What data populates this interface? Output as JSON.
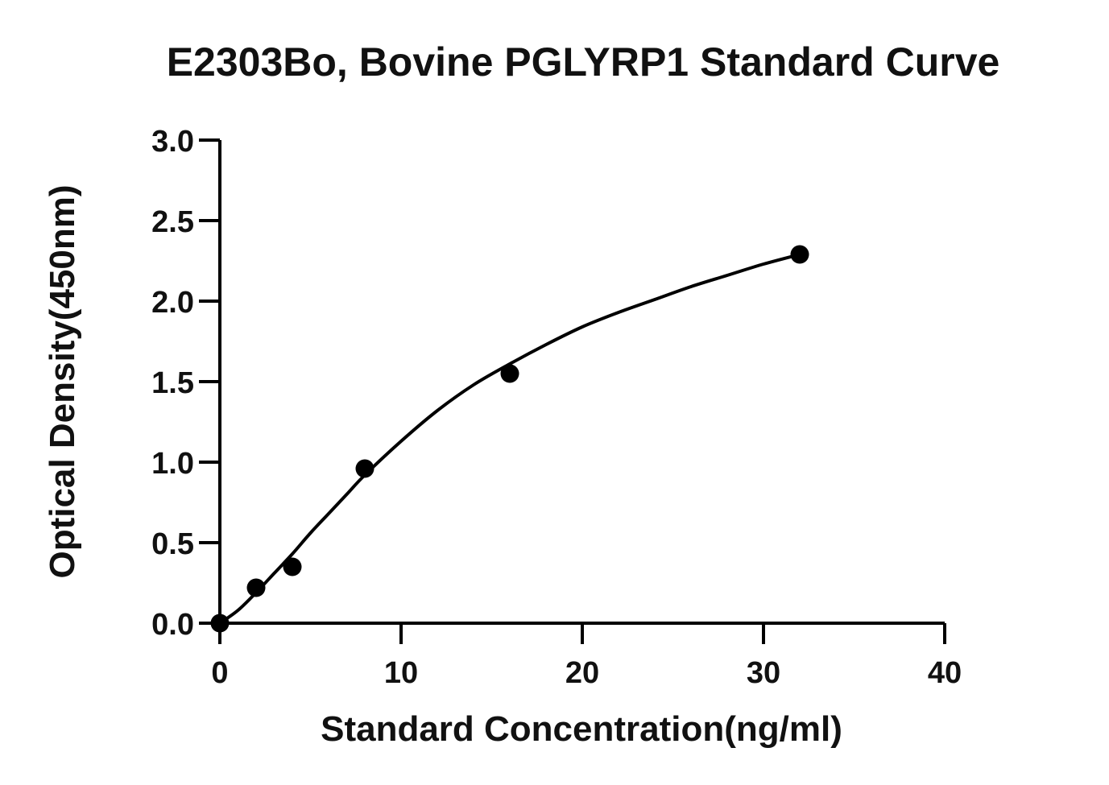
{
  "chart_data": {
    "type": "scatter",
    "title": "E2303Bo, Bovine PGLYRP1  Standard Curve",
    "xlabel": "Standard Concentration(ng/ml)",
    "ylabel": "Optical Density(450nm)",
    "xlim": [
      0,
      40
    ],
    "ylim": [
      0,
      3.0
    ],
    "x_ticks": [
      0,
      10,
      20,
      30,
      40
    ],
    "x_tick_labels": [
      "0",
      "10",
      "20",
      "30",
      "40"
    ],
    "y_ticks": [
      0,
      0.5,
      1.0,
      1.5,
      2.0,
      2.5,
      3.0
    ],
    "y_tick_labels": [
      "0.0",
      "0.5",
      "1.0",
      "1.5",
      "2.0",
      "2.5",
      "3.0"
    ],
    "grid": false,
    "series": [
      {
        "x": [
          0,
          2,
          4,
          8,
          16,
          32
        ],
        "y": [
          0.0,
          0.22,
          0.35,
          0.96,
          1.55,
          2.29
        ]
      }
    ],
    "fit_curve": {
      "type": "4PL",
      "x": [
        0,
        1,
        2,
        3,
        4,
        5,
        6,
        7,
        8,
        10,
        12,
        14,
        16,
        18,
        20,
        22,
        24,
        26,
        28,
        30,
        32
      ],
      "y": [
        0.0,
        0.08,
        0.19,
        0.31,
        0.43,
        0.56,
        0.68,
        0.8,
        0.92,
        1.13,
        1.32,
        1.48,
        1.61,
        1.73,
        1.84,
        1.93,
        2.01,
        2.09,
        2.16,
        2.23,
        2.29
      ]
    },
    "colors": {
      "marks": "#000000",
      "axis": "#000000",
      "text": "#111111",
      "background": "#ffffff"
    }
  }
}
